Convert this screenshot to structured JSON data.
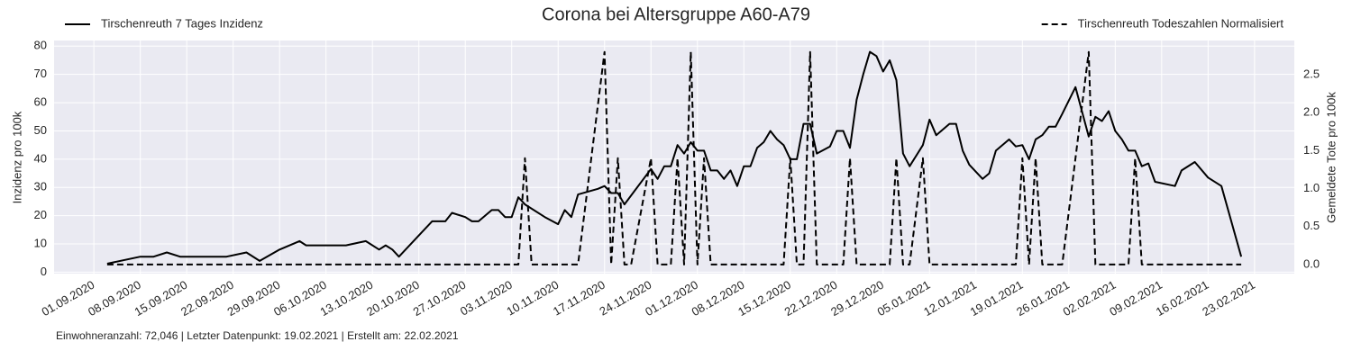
{
  "chart_data": {
    "type": "line",
    "title": "Corona bei Altersgruppe A60-A79",
    "ylabel": "Inzidenz pro 100k",
    "y2label": "Gemeldete Tote pro 100k",
    "footnote": "Einwohneranzahl: 72,046 | Letzter Datenpunkt: 19.02.2021 | Erstellt am: 22.02.2021",
    "grid": true,
    "xlim": [
      "2020-08-26",
      "2021-03-01"
    ],
    "xticks": [
      {
        "value": "2020-09-01",
        "label": "01.09.2020"
      },
      {
        "value": "2020-09-08",
        "label": "08.09.2020"
      },
      {
        "value": "2020-09-15",
        "label": "15.09.2020"
      },
      {
        "value": "2020-09-22",
        "label": "22.09.2020"
      },
      {
        "value": "2020-09-29",
        "label": "29.09.2020"
      },
      {
        "value": "2020-10-06",
        "label": "06.10.2020"
      },
      {
        "value": "2020-10-13",
        "label": "13.10.2020"
      },
      {
        "value": "2020-10-20",
        "label": "20.10.2020"
      },
      {
        "value": "2020-10-27",
        "label": "27.10.2020"
      },
      {
        "value": "2020-11-03",
        "label": "03.11.2020"
      },
      {
        "value": "2020-11-10",
        "label": "10.11.2020"
      },
      {
        "value": "2020-11-17",
        "label": "17.11.2020"
      },
      {
        "value": "2020-11-24",
        "label": "24.11.2020"
      },
      {
        "value": "2020-12-01",
        "label": "01.12.2020"
      },
      {
        "value": "2020-12-08",
        "label": "08.12.2020"
      },
      {
        "value": "2020-12-15",
        "label": "15.12.2020"
      },
      {
        "value": "2020-12-22",
        "label": "22.12.2020"
      },
      {
        "value": "2020-12-29",
        "label": "29.12.2020"
      },
      {
        "value": "2021-01-05",
        "label": "05.01.2021"
      },
      {
        "value": "2021-01-12",
        "label": "12.01.2021"
      },
      {
        "value": "2021-01-19",
        "label": "19.01.2021"
      },
      {
        "value": "2021-01-26",
        "label": "26.01.2021"
      },
      {
        "value": "2021-02-02",
        "label": "02.02.2021"
      },
      {
        "value": "2021-02-09",
        "label": "09.02.2021"
      },
      {
        "value": "2021-02-16",
        "label": "16.02.2021"
      },
      {
        "value": "2021-02-23",
        "label": "23.02.2021"
      }
    ],
    "ylim": [
      -0.5,
      82
    ],
    "yticks": [
      0,
      10,
      20,
      30,
      40,
      50,
      60,
      70,
      80
    ],
    "y2lim": [
      -0.12,
      2.95
    ],
    "y2ticks": [
      {
        "value": 0,
        "label": "0.0"
      },
      0.5,
      {
        "value": 1,
        "label": "1.0"
      },
      1.5,
      {
        "value": 2,
        "label": "2.0"
      },
      2.5
    ],
    "series": [
      {
        "name": "Tirschenreuth 7 Tages Inzidenz",
        "color": "#000000",
        "dash": "solid",
        "legend_loc": "upper left",
        "x": [
          "2020-09-03",
          "2020-09-08",
          "2020-09-10",
          "2020-09-12",
          "2020-09-14",
          "2020-09-21",
          "2020-09-24",
          "2020-09-26",
          "2020-09-29",
          "2020-10-02",
          "2020-10-03",
          "2020-10-09",
          "2020-10-12",
          "2020-10-14",
          "2020-10-15",
          "2020-10-16",
          "2020-10-17",
          "2020-10-22",
          "2020-10-24",
          "2020-10-25",
          "2020-10-27",
          "2020-10-28",
          "2020-10-29",
          "2020-10-31",
          "2020-11-01",
          "2020-11-02",
          "2020-11-03",
          "2020-11-04",
          "2020-11-05",
          "2020-11-08",
          "2020-11-10",
          "2020-11-11",
          "2020-11-12",
          "2020-11-13",
          "2020-11-16",
          "2020-11-17",
          "2020-11-18",
          "2020-11-19",
          "2020-11-20",
          "2020-11-24",
          "2020-11-25",
          "2020-11-26",
          "2020-11-27",
          "2020-11-28",
          "2020-11-29",
          "2020-11-30",
          "2020-12-01",
          "2020-12-02",
          "2020-12-03",
          "2020-12-04",
          "2020-12-05",
          "2020-12-06",
          "2020-12-07",
          "2020-12-08",
          "2020-12-09",
          "2020-12-10",
          "2020-12-11",
          "2020-12-12",
          "2020-12-13",
          "2020-12-14",
          "2020-12-15",
          "2020-12-16",
          "2020-12-17",
          "2020-12-18",
          "2020-12-19",
          "2020-12-21",
          "2020-12-22",
          "2020-12-23",
          "2020-12-24",
          "2020-12-25",
          "2020-12-26",
          "2020-12-27",
          "2020-12-28",
          "2020-12-29",
          "2020-12-30",
          "2020-12-31",
          "2021-01-01",
          "2021-01-02",
          "2021-01-04",
          "2021-01-05",
          "2021-01-06",
          "2021-01-08",
          "2021-01-09",
          "2021-01-10",
          "2021-01-11",
          "2021-01-13",
          "2021-01-14",
          "2021-01-15",
          "2021-01-17",
          "2021-01-18",
          "2021-01-19",
          "2021-01-20",
          "2021-01-21",
          "2021-01-22",
          "2021-01-23",
          "2021-01-24",
          "2021-01-25",
          "2021-01-27",
          "2021-01-29",
          "2021-01-30",
          "2021-01-31",
          "2021-02-01",
          "2021-02-02",
          "2021-02-03",
          "2021-02-04",
          "2021-02-05",
          "2021-02-06",
          "2021-02-07",
          "2021-02-08",
          "2021-02-11",
          "2021-02-12",
          "2021-02-14",
          "2021-02-16",
          "2021-02-18",
          "2021-02-21"
        ],
        "values": [
          3,
          5.5,
          5.5,
          7,
          5.5,
          5.5,
          7,
          4,
          8,
          11,
          9.5,
          9.5,
          11,
          8,
          9.5,
          8,
          5.5,
          18,
          18,
          21,
          19.5,
          18,
          18,
          22,
          22,
          19.5,
          19.5,
          26.5,
          24,
          19.5,
          17,
          22,
          19.5,
          27.5,
          29.5,
          30.5,
          28,
          28,
          24,
          36.5,
          33,
          37.5,
          37.5,
          45,
          42,
          46,
          43,
          43,
          36,
          36,
          33,
          36,
          30.5,
          37.5,
          37.5,
          44,
          46,
          50,
          47,
          45,
          40,
          40,
          52.5,
          52.5,
          42,
          44.5,
          50,
          50,
          44,
          61,
          70,
          78,
          76.5,
          71,
          75,
          68,
          42,
          37.5,
          45,
          54,
          48.5,
          52.5,
          52.5,
          43,
          38,
          33,
          35,
          43,
          47,
          44.5,
          45,
          40,
          47,
          48.5,
          51.5,
          51.5,
          56,
          65.5,
          48,
          55,
          53.5,
          57,
          50,
          47,
          43,
          43,
          37.5,
          38.5,
          32,
          30.5,
          36,
          39,
          33.5,
          30.5,
          5.5
        ]
      },
      {
        "name": "Tirschenreuth Todeszahlen Normalisiert",
        "color": "#000000",
        "dash": "dashed",
        "axis": "y2",
        "legend_loc": "upper right",
        "x": [
          "2020-09-03",
          "2020-11-04",
          "2020-11-05",
          "2020-11-06",
          "2020-11-13",
          "2020-11-17",
          "2020-11-18",
          "2020-11-19",
          "2020-11-20",
          "2020-11-21",
          "2020-11-24",
          "2020-11-25",
          "2020-11-27",
          "2020-11-28",
          "2020-11-29",
          "2020-11-30",
          "2020-12-01",
          "2020-12-02",
          "2020-12-03",
          "2020-12-14",
          "2020-12-15",
          "2020-12-16",
          "2020-12-17",
          "2020-12-18",
          "2020-12-19",
          "2020-12-23",
          "2020-12-24",
          "2020-12-25",
          "2020-12-30",
          "2020-12-31",
          "2021-01-01",
          "2021-01-02",
          "2021-01-04",
          "2021-01-05",
          "2021-01-18",
          "2021-01-19",
          "2021-01-20",
          "2021-01-21",
          "2021-01-22",
          "2021-01-25",
          "2021-01-29",
          "2021-01-30",
          "2021-02-04",
          "2021-02-05",
          "2021-02-06",
          "2021-02-21"
        ],
        "values": [
          0,
          0,
          1.4,
          0,
          0,
          2.8,
          0,
          1.4,
          0,
          0,
          1.4,
          0,
          0,
          1.4,
          0,
          2.8,
          0,
          1.4,
          0,
          0,
          1.4,
          0,
          0,
          2.8,
          0,
          0,
          1.4,
          0,
          0,
          1.4,
          0,
          0,
          1.4,
          0,
          0,
          1.4,
          0,
          1.4,
          0,
          0,
          2.8,
          0,
          0,
          1.4,
          0,
          0
        ]
      }
    ]
  }
}
